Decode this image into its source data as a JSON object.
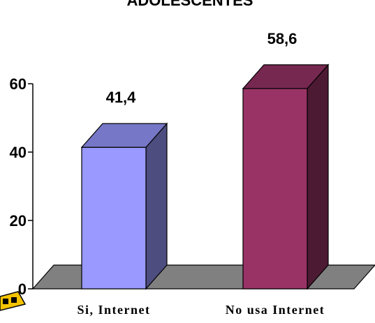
{
  "chart_data": {
    "type": "bar",
    "title": "ADOLESCENTES",
    "categories": [
      "Si, Internet",
      "No usa Internet"
    ],
    "values": [
      41.4,
      58.6
    ],
    "data_labels": [
      "41,4",
      "58,6"
    ],
    "ylim": [
      0,
      60
    ],
    "yticks": [
      0,
      20,
      40,
      60
    ],
    "xlabel": "",
    "ylabel": "",
    "style_3d": true,
    "grid": false,
    "colors": {
      "series": [
        "#9999ff",
        "#993366"
      ],
      "floor": "#808080"
    }
  }
}
